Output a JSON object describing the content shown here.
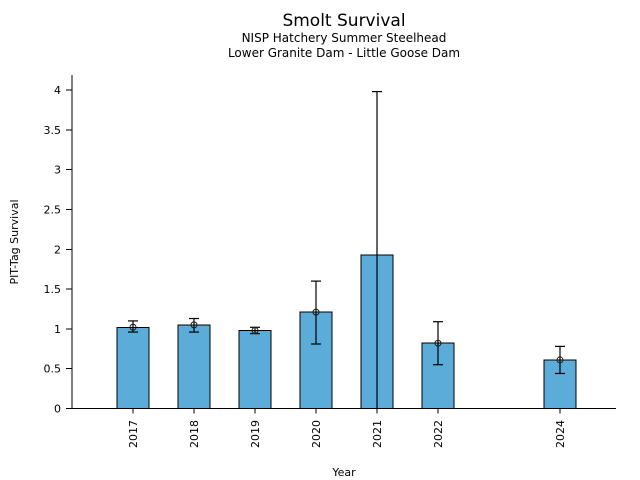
{
  "window": {
    "background_color": "#ffffff",
    "text_color": "#000000"
  },
  "chart_data": {
    "type": "bar",
    "title": "Smolt Survival",
    "subtitle_line1": "NISP Hatchery Summer Steelhead",
    "subtitle_line2": "Lower Granite Dam - Little Goose Dam",
    "xlabel": "Year",
    "ylabel": "PIT-Tag Survival",
    "ylim": [
      0,
      4.19
    ],
    "yticks": [
      0,
      0.5,
      1,
      1.5,
      2,
      2.5,
      3,
      3.5,
      4
    ],
    "ytick_labels": [
      "0",
      "0.5",
      "1",
      "1.5",
      "2",
      "2.5",
      "3",
      "3.5",
      "4"
    ],
    "xtick_labels": [
      "2017",
      "2018",
      "2019",
      "2020",
      "2021",
      "2022",
      "2024"
    ],
    "x_year_range": [
      2017,
      2024
    ],
    "missing_years": [
      2023
    ],
    "grid": false,
    "legend": "none",
    "bar_color": "#5bacd8",
    "bar_edge_color": "#000000",
    "error_color": "#000000",
    "series": [
      {
        "year": 2017,
        "label": "2017",
        "value": 1.02,
        "ci_low": 0.96,
        "ci_high": 1.1,
        "marker": true
      },
      {
        "year": 2018,
        "label": "2018",
        "value": 1.05,
        "ci_low": 0.96,
        "ci_high": 1.13,
        "marker": true
      },
      {
        "year": 2019,
        "label": "2019",
        "value": 0.98,
        "ci_low": 0.94,
        "ci_high": 1.02,
        "marker": true
      },
      {
        "year": 2020,
        "label": "2020",
        "value": 1.21,
        "ci_low": 0.81,
        "ci_high": 1.6,
        "marker": true
      },
      {
        "year": 2021,
        "label": "2021",
        "value": 1.93,
        "ci_low": 0.0,
        "ci_high": 3.98,
        "marker": false
      },
      {
        "year": 2022,
        "label": "2022",
        "value": 0.82,
        "ci_low": 0.55,
        "ci_high": 1.09,
        "marker": true
      },
      {
        "year": 2024,
        "label": "2024",
        "value": 0.61,
        "ci_low": 0.44,
        "ci_high": 0.78,
        "marker": true
      }
    ]
  }
}
